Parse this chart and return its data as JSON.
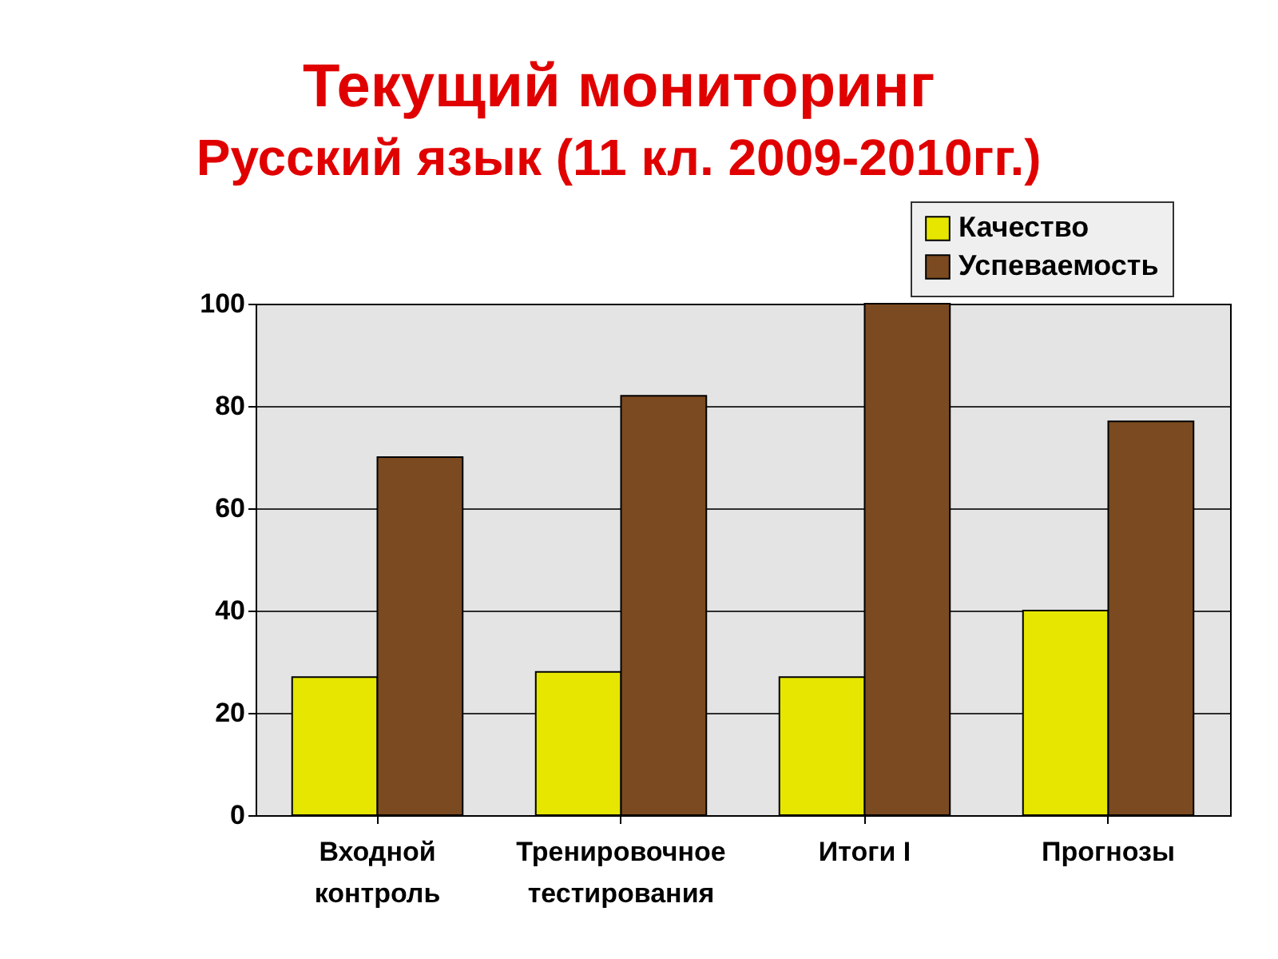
{
  "chart_data": {
    "type": "bar",
    "title": "Текущий мониторинг",
    "subtitle": "Русский язык (11 кл. 2009-2010гг.)",
    "categories": [
      "Входной контроль",
      "Тренировочное тестирования",
      "Итоги I",
      "Прогнозы"
    ],
    "series": [
      {
        "name": "Качество",
        "color": "#e6e600",
        "values": [
          27,
          28,
          27,
          40
        ]
      },
      {
        "name": "Успеваемость",
        "color": "#7b4a20",
        "values": [
          70,
          82,
          100,
          77
        ]
      }
    ],
    "ylim": [
      0,
      100
    ],
    "yticks": [
      0,
      20,
      40,
      60,
      80,
      100
    ],
    "grid": "y",
    "legend": "top right"
  }
}
